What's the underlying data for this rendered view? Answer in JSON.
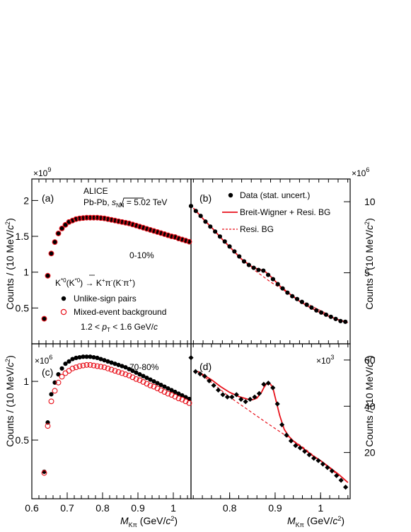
{
  "colors": {
    "data": "#000000",
    "mixed": "#e8111b",
    "fit": "#e8111b"
  },
  "texts": {
    "a_label": "(a)",
    "b_label": "(b)",
    "c_label": "(c)",
    "d_label": "(d)",
    "mult_a": "×10",
    "exp_a": "9",
    "mult_b": "×10",
    "exp_b": "6",
    "mult_c": "×10",
    "exp_c": "6",
    "mult_d": "×10",
    "exp_d": "3",
    "alice": "ALICE",
    "system_pre": "Pb-Pb, ",
    "system_s": "s",
    "system_nn": "NN",
    "system_post": " = 5.02 TeV",
    "cent_a": "0-10%",
    "cent_c": "70-80%",
    "decay_a": "K",
    "decay_b": "*0",
    "decay_c": "(",
    "decay_d": "K",
    "decay_e": "*0",
    "decay_f": ") → K",
    "decay_g": "+",
    "decay_h": "π",
    "decay_i": "-",
    "decay_j": "(K",
    "decay_k": "-",
    "decay_l": "π",
    "decay_m": "+",
    "decay_n": ")",
    "leg_unlike": "Unlike-sign pairs",
    "leg_mixed": "Mixed-event background",
    "pt_pre": "1.2 < ",
    "pt_p": "p",
    "pt_T": "T",
    "pt_post": " < 1.6 GeV/",
    "pt_c": "c",
    "leg_data": "Data (stat. uncert.)",
    "leg_bw": "Breit-Wigner + Resi. BG",
    "leg_resi": "Resi. BG",
    "ylabel_main": "Counts / (10 MeV/",
    "ylabel_c": "c",
    "ylabel_sup": "2",
    "ylabel_close": ")",
    "xlabel_M": "M",
    "xlabel_sub": "Kπ",
    "xlabel_unit": " (GeV/",
    "xlabel_c": "c",
    "xlabel_sup": "2",
    "xlabel_close": ")"
  },
  "chart_data": [
    {
      "panel": "a",
      "type": "scatter",
      "xlim": [
        0.6,
        1.05
      ],
      "ylim": [
        0.0,
        2.3
      ],
      "y_multiplier": "1e9",
      "yticks": [
        "0.5",
        "1",
        "1.5",
        "2"
      ],
      "xlabel": "M_Kπ (GeV/c^2)",
      "ylabel": "Counts / (10 MeV/c^2)",
      "series": [
        {
          "name": "Unlike-sign pairs",
          "marker": "filled-circle",
          "x": [
            0.635,
            0.645,
            0.655,
            0.665,
            0.675,
            0.685,
            0.695,
            0.705,
            0.715,
            0.725,
            0.735,
            0.745,
            0.755,
            0.765,
            0.775,
            0.785,
            0.795,
            0.805,
            0.815,
            0.825,
            0.835,
            0.845,
            0.855,
            0.865,
            0.875,
            0.885,
            0.895,
            0.905,
            0.915,
            0.925,
            0.935,
            0.945,
            0.955,
            0.965,
            0.975,
            0.985,
            0.995,
            1.005,
            1.015,
            1.025,
            1.035,
            1.045
          ],
          "values": [
            0.35,
            0.95,
            1.26,
            1.42,
            1.54,
            1.61,
            1.66,
            1.7,
            1.72,
            1.74,
            1.75,
            1.755,
            1.76,
            1.76,
            1.76,
            1.76,
            1.755,
            1.75,
            1.74,
            1.73,
            1.72,
            1.71,
            1.7,
            1.69,
            1.68,
            1.665,
            1.65,
            1.635,
            1.62,
            1.605,
            1.59,
            1.575,
            1.56,
            1.545,
            1.53,
            1.515,
            1.5,
            1.49,
            1.47,
            1.455,
            1.44,
            1.425
          ]
        },
        {
          "name": "Mixed-event background",
          "marker": "open-circle",
          "x": [
            0.635,
            0.645,
            0.655,
            0.665,
            0.675,
            0.685,
            0.695,
            0.705,
            0.715,
            0.725,
            0.735,
            0.745,
            0.755,
            0.765,
            0.775,
            0.785,
            0.795,
            0.805,
            0.815,
            0.825,
            0.835,
            0.845,
            0.855,
            0.865,
            0.875,
            0.885,
            0.895,
            0.905,
            0.915,
            0.925,
            0.935,
            0.945,
            0.955,
            0.965,
            0.975,
            0.985,
            0.995,
            1.005,
            1.015,
            1.025,
            1.035,
            1.045
          ],
          "values": [
            0.35,
            0.95,
            1.26,
            1.42,
            1.54,
            1.61,
            1.66,
            1.7,
            1.72,
            1.74,
            1.75,
            1.755,
            1.76,
            1.76,
            1.76,
            1.76,
            1.755,
            1.75,
            1.74,
            1.73,
            1.72,
            1.71,
            1.7,
            1.69,
            1.68,
            1.665,
            1.65,
            1.635,
            1.62,
            1.605,
            1.59,
            1.575,
            1.56,
            1.545,
            1.53,
            1.515,
            1.5,
            1.49,
            1.47,
            1.455,
            1.44,
            1.425
          ]
        }
      ]
    },
    {
      "panel": "b",
      "type": "scatter",
      "xlim": [
        0.735,
        1.065
      ],
      "ylim": [
        0.0,
        11.6
      ],
      "y_multiplier": "1e6",
      "yticks": [
        "5",
        "10"
      ],
      "series": [
        {
          "name": "Data (stat. uncert.)",
          "marker": "filled-circle",
          "x": [
            0.735,
            0.745,
            0.755,
            0.765,
            0.775,
            0.785,
            0.795,
            0.805,
            0.815,
            0.825,
            0.835,
            0.845,
            0.855,
            0.865,
            0.875,
            0.885,
            0.895,
            0.905,
            0.915,
            0.925,
            0.935,
            0.945,
            0.955,
            0.965,
            0.975,
            0.985,
            0.995,
            1.005,
            1.015,
            1.025,
            1.035,
            1.045,
            1.055
          ],
          "values": [
            9.7,
            9.35,
            9.0,
            8.6,
            8.25,
            7.9,
            7.55,
            7.2,
            6.85,
            6.5,
            6.15,
            5.8,
            5.55,
            5.35,
            5.2,
            5.15,
            4.85,
            4.55,
            4.2,
            3.9,
            3.6,
            3.35,
            3.15,
            2.95,
            2.75,
            2.55,
            2.35,
            2.2,
            2.05,
            1.9,
            1.75,
            1.6,
            1.55
          ]
        },
        {
          "name": "Breit-Wigner + Resi. BG",
          "marker": "line",
          "x": [
            0.74,
            0.76,
            0.78,
            0.8,
            0.82,
            0.84,
            0.86,
            0.87,
            0.88,
            0.89,
            0.9,
            0.91,
            0.92,
            0.94,
            0.96,
            0.98,
            1.0,
            1.02,
            1.04,
            1.06
          ],
          "values": [
            9.55,
            8.8,
            8.1,
            7.35,
            6.65,
            5.95,
            5.45,
            5.3,
            5.2,
            5.05,
            4.75,
            4.4,
            4.05,
            3.5,
            3.0,
            2.6,
            2.25,
            1.95,
            1.7,
            1.5
          ]
        },
        {
          "name": "Resi. BG",
          "marker": "dashed-line",
          "x": [
            0.86,
            0.9,
            0.94,
            0.98,
            1.02
          ],
          "values": [
            5.35,
            4.35,
            3.5,
            2.75,
            2.05
          ]
        }
      ]
    },
    {
      "panel": "c",
      "type": "scatter",
      "xlim": [
        0.6,
        1.05
      ],
      "ylim": [
        0.0,
        1.32
      ],
      "y_multiplier": "1e6",
      "yticks": [
        "0.5",
        "1"
      ],
      "xticks": [
        "0.6",
        "0.7",
        "0.8",
        "0.9",
        "1"
      ],
      "series": [
        {
          "name": "Unlike-sign pairs",
          "marker": "filled-circle",
          "x": [
            0.635,
            0.645,
            0.655,
            0.665,
            0.675,
            0.685,
            0.695,
            0.705,
            0.715,
            0.725,
            0.735,
            0.745,
            0.755,
            0.765,
            0.775,
            0.785,
            0.795,
            0.805,
            0.815,
            0.825,
            0.835,
            0.845,
            0.855,
            0.865,
            0.875,
            0.885,
            0.895,
            0.905,
            0.915,
            0.925,
            0.935,
            0.945,
            0.955,
            0.965,
            0.975,
            0.985,
            0.995,
            1.005,
            1.015,
            1.025,
            1.035,
            1.045
          ],
          "values": [
            0.23,
            0.65,
            0.89,
            0.99,
            1.06,
            1.11,
            1.15,
            1.17,
            1.19,
            1.2,
            1.205,
            1.21,
            1.21,
            1.21,
            1.205,
            1.2,
            1.19,
            1.18,
            1.17,
            1.16,
            1.15,
            1.14,
            1.13,
            1.12,
            1.105,
            1.09,
            1.075,
            1.06,
            1.045,
            1.03,
            1.015,
            1.0,
            0.985,
            0.97,
            0.955,
            0.94,
            0.925,
            0.91,
            0.895,
            0.88,
            0.865,
            0.85
          ]
        },
        {
          "name": "Mixed-event background",
          "marker": "open-circle",
          "x": [
            0.635,
            0.645,
            0.655,
            0.665,
            0.675,
            0.685,
            0.695,
            0.705,
            0.715,
            0.725,
            0.735,
            0.745,
            0.755,
            0.765,
            0.775,
            0.785,
            0.795,
            0.805,
            0.815,
            0.825,
            0.835,
            0.845,
            0.855,
            0.865,
            0.875,
            0.885,
            0.895,
            0.905,
            0.915,
            0.925,
            0.935,
            0.945,
            0.955,
            0.965,
            0.975,
            0.985,
            0.995,
            1.005,
            1.015,
            1.025,
            1.035,
            1.045
          ],
          "values": [
            0.22,
            0.62,
            0.83,
            0.92,
            0.99,
            1.04,
            1.07,
            1.09,
            1.11,
            1.12,
            1.13,
            1.135,
            1.14,
            1.14,
            1.135,
            1.13,
            1.125,
            1.12,
            1.11,
            1.1,
            1.09,
            1.08,
            1.07,
            1.06,
            1.05,
            1.035,
            1.02,
            1.01,
            0.995,
            0.98,
            0.965,
            0.955,
            0.94,
            0.925,
            0.91,
            0.895,
            0.885,
            0.87,
            0.855,
            0.845,
            0.83,
            0.815
          ]
        }
      ]
    },
    {
      "panel": "d",
      "type": "scatter",
      "xlim": [
        0.715,
        1.065
      ],
      "ylim": [
        0.0,
        67.0
      ],
      "y_multiplier": "1e3",
      "yticks": [
        "20",
        "40",
        "60"
      ],
      "xticks": [
        "0.8",
        "0.9",
        "1"
      ],
      "series": [
        {
          "name": "Data (stat. uncert.)",
          "marker": "filled-diamond",
          "x": [
            0.715,
            0.725,
            0.735,
            0.745,
            0.755,
            0.765,
            0.775,
            0.785,
            0.795,
            0.805,
            0.815,
            0.825,
            0.835,
            0.845,
            0.855,
            0.865,
            0.875,
            0.885,
            0.895,
            0.905,
            0.915,
            0.925,
            0.935,
            0.945,
            0.955,
            0.965,
            0.975,
            0.985,
            0.995,
            1.005,
            1.015,
            1.025,
            1.035,
            1.045,
            1.055
          ],
          "values": [
            61,
            55,
            54,
            53,
            51,
            49,
            47,
            45,
            44,
            44,
            45,
            43,
            42,
            43,
            44,
            45.5,
            49.5,
            50,
            48,
            41,
            32,
            27.5,
            25,
            23,
            22,
            20.5,
            19,
            17.5,
            16.5,
            15,
            13.5,
            12,
            10,
            8,
            5
          ]
        },
        {
          "name": "Breit-Wigner + Resi. BG",
          "marker": "line",
          "x": [
            0.73,
            0.76,
            0.78,
            0.8,
            0.82,
            0.84,
            0.85,
            0.86,
            0.87,
            0.875,
            0.88,
            0.885,
            0.89,
            0.895,
            0.9,
            0.91,
            0.92,
            0.93,
            0.94,
            0.96,
            0.98,
            1.0,
            1.02,
            1.04,
            1.06
          ],
          "values": [
            55,
            51.5,
            48.5,
            46,
            44.2,
            43,
            42.8,
            43.5,
            46,
            48,
            49.5,
            50,
            49.5,
            48,
            44,
            36,
            30,
            27,
            25,
            22,
            19,
            16.5,
            13.5,
            10.5,
            7
          ]
        },
        {
          "name": "Resi. BG",
          "marker": "dashed-line",
          "x": [
            0.73,
            0.8,
            0.88,
            0.96,
            1.04
          ],
          "values": [
            55,
            44,
            33,
            22.5,
            10
          ]
        }
      ]
    }
  ]
}
